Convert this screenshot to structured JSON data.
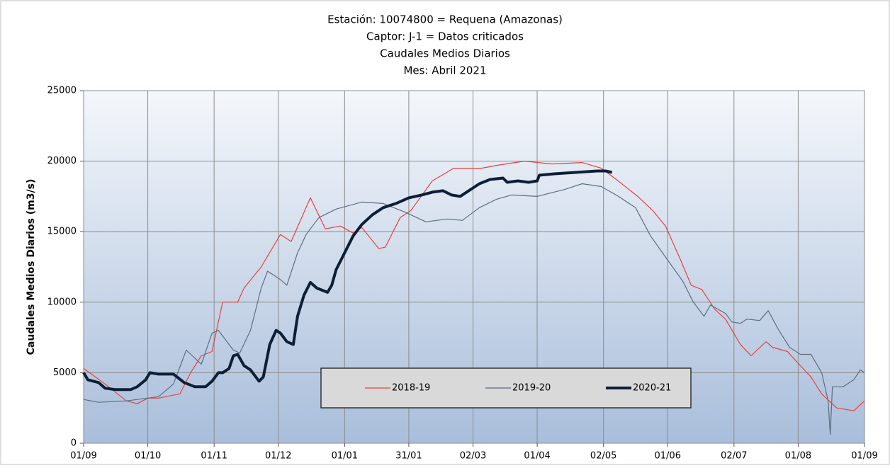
{
  "chart_data": {
    "type": "line",
    "title": [
      "Estación: 10074800 = Requena    (Amazonas)",
      "Captor: J-1 = Datos criticados",
      "Caudales Medios Diarios",
      "Mes: Abril 2021"
    ],
    "y_label": "Caudales Medios Diarios (m3/s)",
    "xlim": [
      0,
      365
    ],
    "xticks": [
      {
        "value": 0,
        "label": "01/09"
      },
      {
        "value": 30,
        "label": "01/10"
      },
      {
        "value": 61,
        "label": "01/11"
      },
      {
        "value": 91,
        "label": "01/12"
      },
      {
        "value": 122,
        "label": "01/01"
      },
      {
        "value": 152,
        "label": "31/01"
      },
      {
        "value": 182,
        "label": "02/03"
      },
      {
        "value": 212,
        "label": "01/04"
      },
      {
        "value": 243,
        "label": "02/05"
      },
      {
        "value": 273,
        "label": "01/06"
      },
      {
        "value": 304,
        "label": "02/07"
      },
      {
        "value": 334,
        "label": "01/08"
      },
      {
        "value": 365,
        "label": "01/09"
      }
    ],
    "ylim": [
      0,
      25000
    ],
    "yticks": [
      0,
      5000,
      10000,
      15000,
      20000,
      25000
    ],
    "grid": true,
    "legend": "bottom",
    "series": [
      {
        "name": "2018-19",
        "color": "#e8413c",
        "width": 1.2,
        "x": [
          0,
          10,
          20,
          25,
          30,
          35,
          45,
          50,
          55,
          60,
          65,
          72,
          75,
          83,
          92,
          97,
          106,
          113,
          120,
          126,
          130,
          138,
          141,
          148,
          153,
          163,
          173,
          186,
          193,
          206,
          219,
          233,
          242,
          249,
          259,
          266,
          272,
          279,
          284,
          289,
          295,
          300,
          307,
          312,
          319,
          322,
          329,
          335,
          340,
          345,
          352,
          360,
          365
        ],
        "values": [
          5300,
          4200,
          3000,
          2800,
          3200,
          3200,
          3500,
          5000,
          6200,
          6500,
          10000,
          10000,
          11000,
          12500,
          14800,
          14300,
          17400,
          15200,
          15400,
          14900,
          15300,
          13800,
          13900,
          16000,
          16500,
          18600,
          19500,
          19500,
          19700,
          20000,
          19800,
          19900,
          19500,
          18700,
          17500,
          16500,
          15400,
          13000,
          11200,
          10900,
          9500,
          8800,
          7000,
          6200,
          7200,
          6800,
          6500,
          5500,
          4700,
          3500,
          2500,
          2300,
          3000
        ]
      },
      {
        "name": "2019-20",
        "color": "#5c6f80",
        "width": 1.2,
        "x": [
          0,
          7,
          20,
          35,
          42,
          48,
          55,
          60,
          63,
          70,
          73,
          78,
          83,
          86,
          92,
          95,
          100,
          104,
          110,
          118,
          130,
          140,
          150,
          160,
          170,
          177,
          185,
          193,
          200,
          212,
          225,
          233,
          242,
          250,
          258,
          265,
          272,
          280,
          285,
          290,
          293,
          300,
          303,
          307,
          310,
          316,
          320,
          325,
          330,
          335,
          340,
          345,
          348,
          349,
          350,
          355,
          360,
          363,
          365
        ],
        "values": [
          3100,
          2900,
          3000,
          3300,
          4200,
          6600,
          5600,
          7800,
          8000,
          6600,
          6400,
          8000,
          11000,
          12200,
          11600,
          11200,
          13500,
          14800,
          16000,
          16600,
          17100,
          17000,
          16400,
          15700,
          15900,
          15800,
          16700,
          17300,
          17600,
          17500,
          18000,
          18400,
          18200,
          17500,
          16700,
          14700,
          13200,
          11500,
          10000,
          9000,
          9800,
          9200,
          8600,
          8500,
          8800,
          8700,
          9400,
          8000,
          6800,
          6300,
          6300,
          5000,
          3000,
          600,
          4000,
          4000,
          4500,
          5200,
          5000
        ]
      },
      {
        "name": "2020-21",
        "color": "#0d1f36",
        "width": 4,
        "x": [
          0,
          2,
          7,
          10,
          15,
          22,
          25,
          29,
          31,
          35,
          42,
          47,
          52,
          57,
          60,
          63,
          65,
          68,
          70,
          72,
          75,
          78,
          82,
          84,
          87,
          90,
          92,
          95,
          98,
          100,
          103,
          106,
          109,
          114,
          116,
          118,
          122,
          126,
          130,
          135,
          140,
          146,
          152,
          158,
          163,
          168,
          172,
          176,
          180,
          185,
          190,
          196,
          198,
          203,
          208,
          212,
          213,
          220,
          230,
          240,
          244,
          247
        ],
        "values": [
          5000,
          4500,
          4300,
          3900,
          3800,
          3800,
          4000,
          4500,
          5000,
          4900,
          4900,
          4300,
          4000,
          4000,
          4400,
          5000,
          5000,
          5300,
          6200,
          6300,
          5500,
          5200,
          4400,
          4700,
          7000,
          8000,
          7800,
          7200,
          7000,
          9000,
          10500,
          11400,
          11000,
          10700,
          11200,
          12300,
          13500,
          14700,
          15500,
          16200,
          16700,
          17000,
          17400,
          17600,
          17800,
          17900,
          17600,
          17500,
          17900,
          18400,
          18700,
          18800,
          18500,
          18600,
          18500,
          18600,
          19000,
          19100,
          19200,
          19300,
          19300,
          19200
        ]
      }
    ]
  }
}
